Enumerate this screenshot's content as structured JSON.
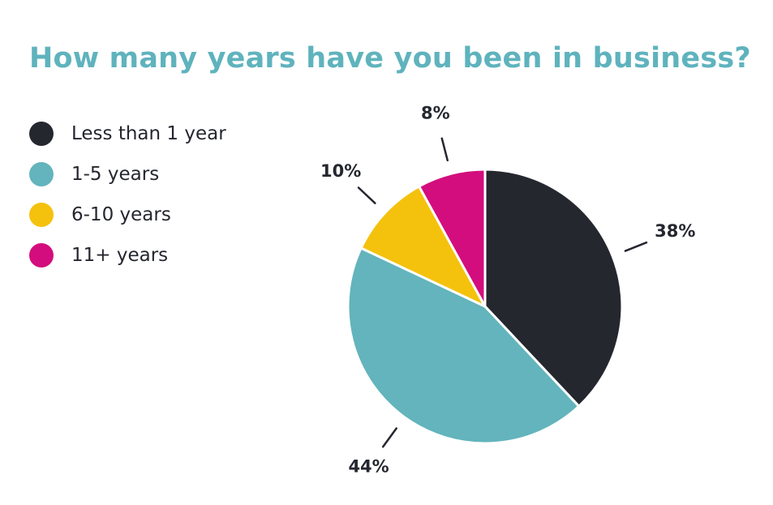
{
  "chart_data": {
    "type": "pie",
    "title": "How many years have you been in business?",
    "slices": [
      {
        "label": "Less than 1 year",
        "value": 38,
        "display": "38%",
        "color": "#25272f"
      },
      {
        "label": "1-5 years",
        "value": 44,
        "display": "44%",
        "color": "#63b4bc"
      },
      {
        "label": "6-10 years",
        "value": 10,
        "display": "10%",
        "color": "#f4c20d"
      },
      {
        "label": "11+ years",
        "value": 8,
        "display": "8%",
        "color": "#d30d7d"
      }
    ],
    "legend_position": "left"
  }
}
